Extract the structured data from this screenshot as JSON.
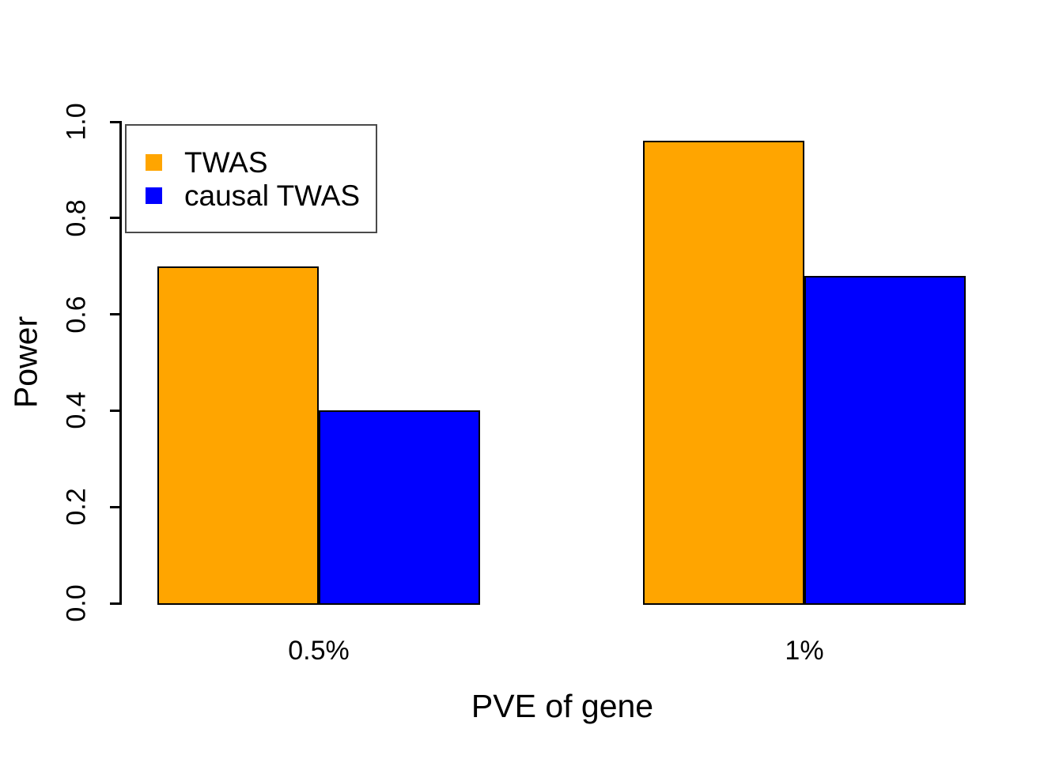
{
  "chart_data": {
    "type": "bar",
    "title": "",
    "xlabel": "PVE of gene",
    "ylabel": "Power",
    "categories": [
      "0.5%",
      "1%"
    ],
    "series": [
      {
        "name": "TWAS",
        "color": "#FFA500",
        "values": [
          0.7,
          0.96
        ]
      },
      {
        "name": "causal TWAS",
        "color": "#0000FF",
        "values": [
          0.4,
          0.68
        ]
      }
    ],
    "ylim": [
      0.0,
      1.0
    ],
    "yticks": [
      "0.0",
      "0.2",
      "0.4",
      "0.6",
      "0.8",
      "1.0"
    ],
    "grid": false,
    "legend_position": "top-left",
    "bar_border_color": "#000000",
    "axis_color": "#000000",
    "background_color": "#FFFFFF"
  }
}
